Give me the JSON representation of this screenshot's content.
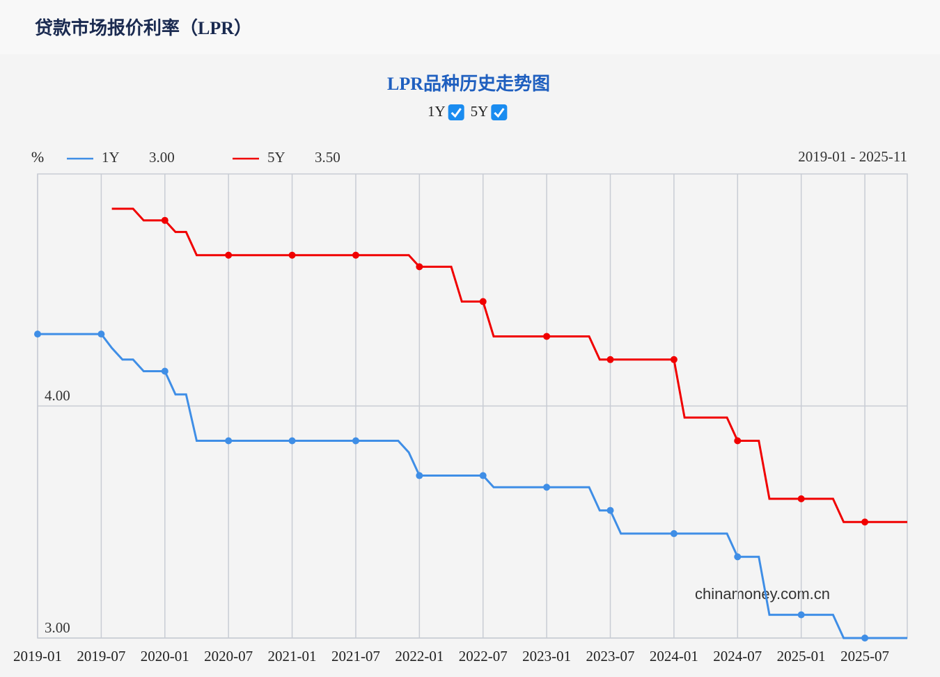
{
  "header": {
    "title": "贷款市场报价利率（LPR）"
  },
  "chart_data": {
    "type": "line",
    "title": "LPR品种历史走势图",
    "unit": "%",
    "range_label": "2019-01 - 2025-11",
    "watermark": "chinamoney.com.cn",
    "categories": [
      "2019-01",
      null,
      null,
      null,
      null,
      null,
      "2019-07",
      null,
      null,
      null,
      null,
      null,
      "2020-01",
      null,
      null,
      null,
      null,
      null,
      "2020-07",
      null,
      null,
      null,
      null,
      null,
      "2021-01",
      null,
      null,
      null,
      null,
      null,
      "2021-07",
      null,
      null,
      null,
      null,
      null,
      "2022-01",
      null,
      null,
      null,
      null,
      null,
      "2022-07",
      null,
      null,
      null,
      null,
      null,
      "2023-01",
      null,
      null,
      null,
      null,
      null,
      "2023-07",
      null,
      null,
      null,
      null,
      null,
      "2024-01",
      null,
      null,
      null,
      null,
      null,
      "2024-07",
      null,
      null,
      null,
      null,
      null,
      "2025-01",
      null,
      null,
      null,
      null,
      null,
      "2025-07",
      null,
      null,
      null,
      null
    ],
    "series": [
      {
        "name": "1Y",
        "color": "#3f8ee6",
        "latest_label": "3.00",
        "values": [
          4.31,
          4.31,
          4.31,
          4.31,
          4.31,
          4.31,
          4.31,
          4.25,
          4.2,
          4.2,
          4.15,
          4.15,
          4.15,
          4.05,
          4.05,
          3.85,
          3.85,
          3.85,
          3.85,
          3.85,
          3.85,
          3.85,
          3.85,
          3.85,
          3.85,
          3.85,
          3.85,
          3.85,
          3.85,
          3.85,
          3.85,
          3.85,
          3.85,
          3.85,
          3.85,
          3.8,
          3.7,
          3.7,
          3.7,
          3.7,
          3.7,
          3.7,
          3.7,
          3.65,
          3.65,
          3.65,
          3.65,
          3.65,
          3.65,
          3.65,
          3.65,
          3.65,
          3.65,
          3.55,
          3.55,
          3.45,
          3.45,
          3.45,
          3.45,
          3.45,
          3.45,
          3.45,
          3.45,
          3.45,
          3.45,
          3.45,
          3.35,
          3.35,
          3.35,
          3.1,
          3.1,
          3.1,
          3.1,
          3.1,
          3.1,
          3.1,
          3.0,
          3.0,
          3.0,
          3.0,
          3.0,
          3.0,
          3.0
        ]
      },
      {
        "name": "5Y",
        "color": "#f00000",
        "latest_label": "3.50",
        "values": [
          null,
          null,
          null,
          null,
          null,
          null,
          null,
          4.85,
          4.85,
          4.85,
          4.8,
          4.8,
          4.8,
          4.75,
          4.75,
          4.65,
          4.65,
          4.65,
          4.65,
          4.65,
          4.65,
          4.65,
          4.65,
          4.65,
          4.65,
          4.65,
          4.65,
          4.65,
          4.65,
          4.65,
          4.65,
          4.65,
          4.65,
          4.65,
          4.65,
          4.65,
          4.6,
          4.6,
          4.6,
          4.6,
          4.45,
          4.45,
          4.45,
          4.3,
          4.3,
          4.3,
          4.3,
          4.3,
          4.3,
          4.3,
          4.3,
          4.3,
          4.3,
          4.2,
          4.2,
          4.2,
          4.2,
          4.2,
          4.2,
          4.2,
          4.2,
          3.95,
          3.95,
          3.95,
          3.95,
          3.95,
          3.85,
          3.85,
          3.85,
          3.6,
          3.6,
          3.6,
          3.6,
          3.6,
          3.6,
          3.6,
          3.5,
          3.5,
          3.5,
          3.5,
          3.5,
          3.5,
          3.5
        ]
      }
    ],
    "ylim": [
      3,
      5
    ],
    "yticks": [
      {
        "value": 3,
        "label": "3.00"
      },
      {
        "value": 4,
        "label": "4.00"
      }
    ],
    "grid": true
  }
}
